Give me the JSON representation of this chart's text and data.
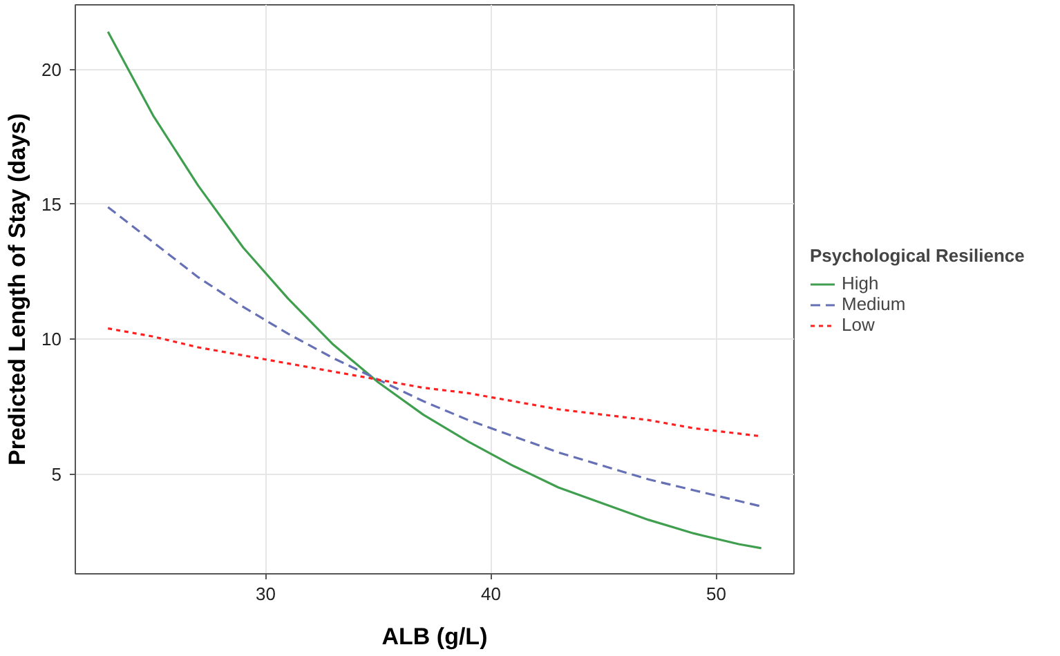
{
  "chart_data": {
    "type": "line",
    "xlabel": "ALB (g/L)",
    "ylabel": "Predicted Length of Stay (days)",
    "legend_title": "Psychological Resilience",
    "x": [
      23,
      25,
      27,
      29,
      31,
      33,
      35,
      37,
      39,
      41,
      43,
      45,
      47,
      49,
      51,
      52
    ],
    "series": [
      {
        "name": "High",
        "color": "#3f9f4f",
        "line_style": "solid",
        "values": [
          21.4,
          18.3,
          15.7,
          13.4,
          11.5,
          9.8,
          8.4,
          7.2,
          6.2,
          5.3,
          4.5,
          3.9,
          3.3,
          2.8,
          2.4,
          2.25
        ]
      },
      {
        "name": "Medium",
        "color": "#6670b4",
        "line_style": "dashed",
        "values": [
          14.9,
          13.6,
          12.3,
          11.2,
          10.2,
          9.3,
          8.5,
          7.7,
          7.0,
          6.4,
          5.8,
          5.3,
          4.8,
          4.4,
          4.0,
          3.8
        ]
      },
      {
        "name": "Low",
        "color": "#ff2020",
        "line_style": "dotted",
        "values": [
          10.4,
          10.1,
          9.7,
          9.4,
          9.1,
          8.8,
          8.5,
          8.2,
          8.0,
          7.7,
          7.4,
          7.2,
          7.0,
          6.7,
          6.5,
          6.4
        ]
      }
    ],
    "xlim": [
      21.55,
      53.45
    ],
    "xticks": [
      30,
      40,
      50
    ],
    "ylim": [
      1.3,
      22.4
    ],
    "yticks": [
      5,
      10,
      15,
      20
    ],
    "grid": true,
    "legend": "right"
  }
}
